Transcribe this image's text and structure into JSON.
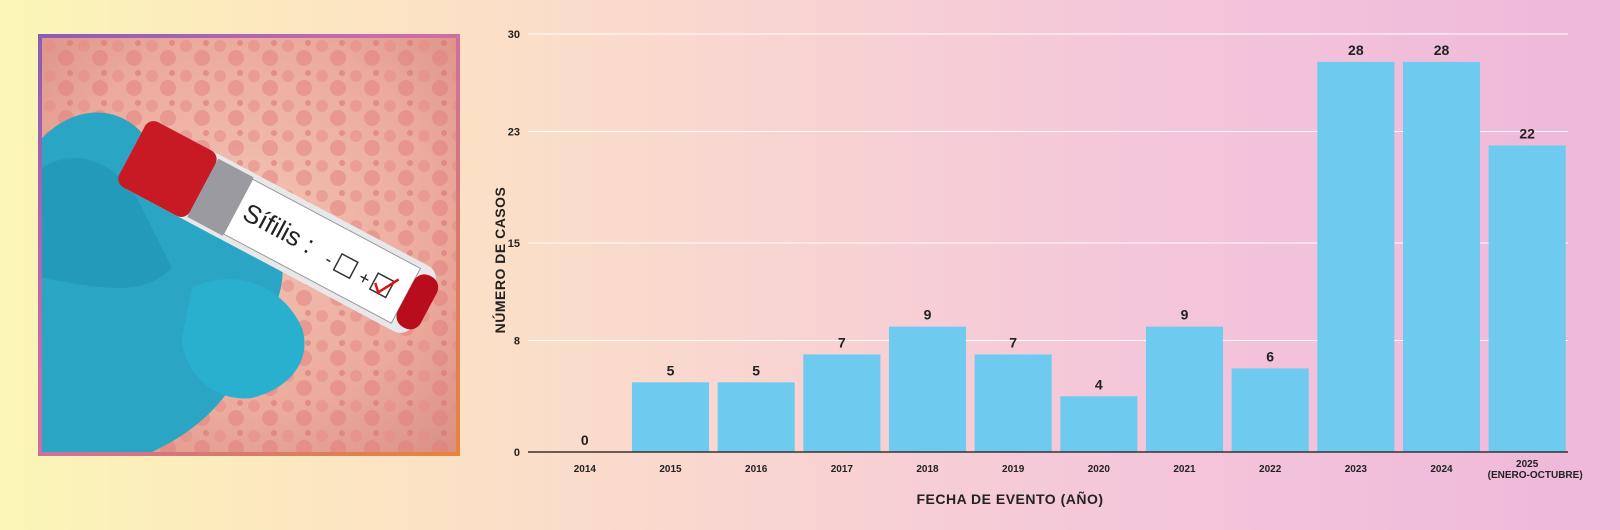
{
  "photo": {
    "tube_label": "Sífilis :",
    "neg_mark": "-",
    "pos_mark": "+"
  },
  "chart_data": {
    "type": "bar",
    "categories": [
      "2014",
      "2015",
      "2016",
      "2017",
      "2018",
      "2019",
      "2020",
      "2021",
      "2022",
      "2023",
      "2024",
      "2025"
    ],
    "category_sublabels": {
      "2025": "(ENERO-OCTUBRE)"
    },
    "values": [
      0,
      5,
      5,
      7,
      9,
      7,
      4,
      9,
      6,
      28,
      28,
      22
    ],
    "y_ticks": [
      0,
      8,
      15,
      23,
      30
    ],
    "ylim": [
      0,
      30
    ],
    "xlabel": "FECHA DE EVENTO (AÑO)",
    "ylabel": "NÚMERO DE CASOS",
    "grid": true,
    "bar_color": "#6ecbef"
  }
}
